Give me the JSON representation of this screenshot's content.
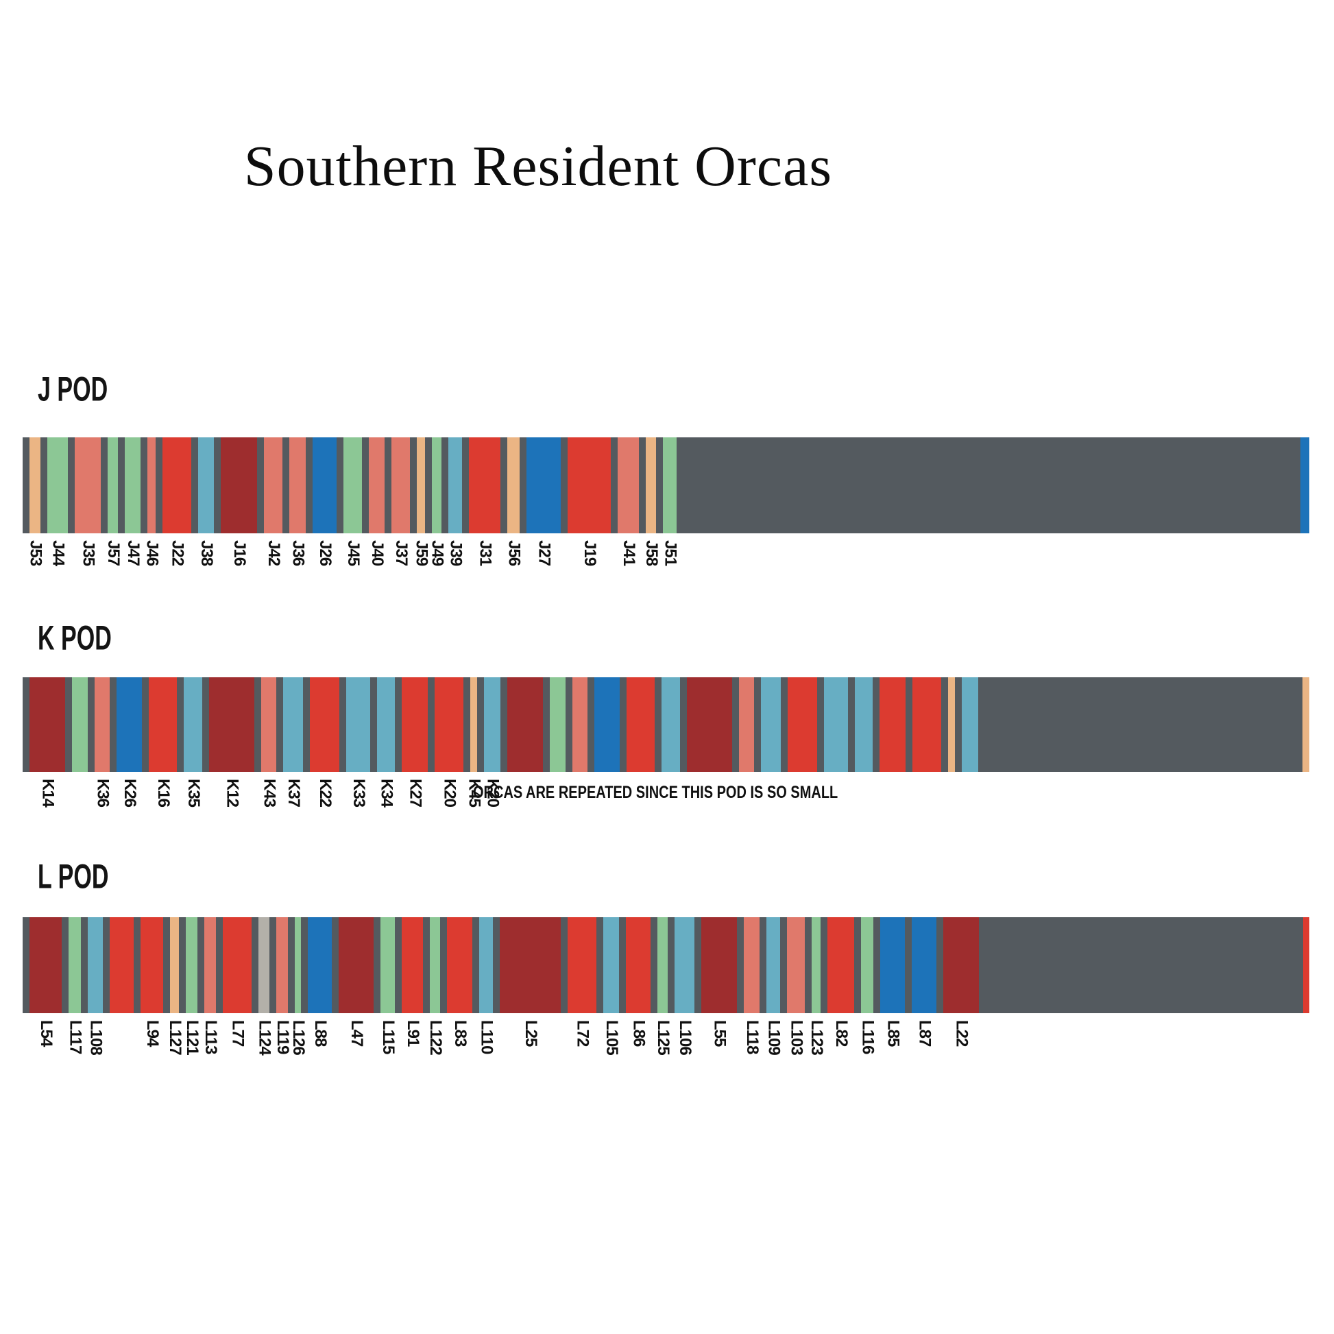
{
  "chart_data": {
    "type": "bar",
    "title": "Southern Resident Orcas",
    "subtitle": "",
    "legend": "none",
    "axes": "none",
    "colors": {
      "slate": "#545A5F",
      "tan": "#EBB584",
      "green": "#8CC795",
      "salmon": "#E0796B",
      "red": "#DC3B30",
      "lightblue": "#67AEC3",
      "darkred": "#9E2D2E",
      "blue": "#1D73B9",
      "silver": "#B3B0A9",
      "background": "#FFFFFF",
      "text": "#111111"
    },
    "pods": [
      {
        "name": "J POD",
        "caption": "",
        "repeat": false,
        "edge_color": "blue",
        "edge_w": 13,
        "members": [
          {
            "id": "J53",
            "color": "tan",
            "w": 16
          },
          {
            "id": "J44",
            "color": "green",
            "w": 30
          },
          {
            "id": "J35",
            "color": "salmon",
            "w": 38
          },
          {
            "id": "J57",
            "color": "green",
            "w": 15
          },
          {
            "id": "J47",
            "color": "green",
            "w": 23
          },
          {
            "id": "J46",
            "color": "salmon",
            "w": 12
          },
          {
            "id": "J22",
            "color": "red",
            "w": 42
          },
          {
            "id": "J38",
            "color": "lightblue",
            "w": 23
          },
          {
            "id": "J16",
            "color": "darkred",
            "w": 53
          },
          {
            "id": "J42",
            "color": "salmon",
            "w": 27
          },
          {
            "id": "J36",
            "color": "salmon",
            "w": 24
          },
          {
            "id": "J26",
            "color": "blue",
            "w": 35
          },
          {
            "id": "J45",
            "color": "green",
            "w": 27
          },
          {
            "id": "J40",
            "color": "salmon",
            "w": 23
          },
          {
            "id": "J37",
            "color": "salmon",
            "w": 27
          },
          {
            "id": "J59",
            "color": "tan",
            "w": 12
          },
          {
            "id": "J49",
            "color": "green",
            "w": 14
          },
          {
            "id": "J39",
            "color": "lightblue",
            "w": 20
          },
          {
            "id": "J31",
            "color": "red",
            "w": 46
          },
          {
            "id": "J56",
            "color": "tan",
            "w": 18
          },
          {
            "id": "J27",
            "color": "blue",
            "w": 50
          },
          {
            "id": "J19",
            "color": "red",
            "w": 63
          },
          {
            "id": "J41",
            "color": "salmon",
            "w": 31
          },
          {
            "id": "J58",
            "color": "tan",
            "w": 15
          },
          {
            "id": "J51",
            "color": "green",
            "w": 20
          }
        ]
      },
      {
        "name": "K POD",
        "caption": "ORCAS ARE REPEATED SINCE THIS POD IS SO SMALL",
        "repeat": true,
        "edge_color": "tan",
        "edge_w": 10,
        "members": [
          {
            "id": "K14",
            "color": "darkred",
            "w": 52
          },
          {
            "id": "",
            "color": "green",
            "w": 23
          },
          {
            "id": "K36",
            "color": "salmon",
            "w": 22
          },
          {
            "id": "K26",
            "color": "blue",
            "w": 37
          },
          {
            "id": "K16",
            "color": "red",
            "w": 41
          },
          {
            "id": "K35",
            "color": "lightblue",
            "w": 27
          },
          {
            "id": "K12",
            "color": "darkred",
            "w": 66
          },
          {
            "id": "K43",
            "color": "salmon",
            "w": 22
          },
          {
            "id": "K37",
            "color": "lightblue",
            "w": 29
          },
          {
            "id": "K22",
            "color": "red",
            "w": 43
          },
          {
            "id": "K33",
            "color": "lightblue",
            "w": 35
          },
          {
            "id": "K34",
            "color": "lightblue",
            "w": 26
          },
          {
            "id": "K27",
            "color": "red",
            "w": 38
          },
          {
            "id": "K20",
            "color": "red",
            "w": 42
          },
          {
            "id": "K45",
            "color": "tan",
            "w": 10
          },
          {
            "id": "K20",
            "color": "lightblue",
            "w": 24
          }
        ]
      },
      {
        "name": "L POD",
        "caption": "",
        "repeat": false,
        "edge_color": "red",
        "edge_w": 9,
        "members": [
          {
            "id": "L54",
            "color": "darkred",
            "w": 47
          },
          {
            "id": "L117",
            "color": "green",
            "w": 18
          },
          {
            "id": "L108",
            "color": "lightblue",
            "w": 22
          },
          {
            "id": "",
            "color": "red",
            "w": 35
          },
          {
            "id": "L94",
            "color": "red",
            "w": 33
          },
          {
            "id": "L127",
            "color": "tan",
            "w": 13
          },
          {
            "id": "L121",
            "color": "green",
            "w": 17
          },
          {
            "id": "L113",
            "color": "salmon",
            "w": 17
          },
          {
            "id": "L77",
            "color": "red",
            "w": 42
          },
          {
            "id": "L124",
            "color": "silver",
            "w": 16
          },
          {
            "id": "L119",
            "color": "salmon",
            "w": 17
          },
          {
            "id": "L126",
            "color": "green",
            "w": 9
          },
          {
            "id": "L88",
            "color": "blue",
            "w": 35
          },
          {
            "id": "L47",
            "color": "darkred",
            "w": 51
          },
          {
            "id": "L115",
            "color": "green",
            "w": 21
          },
          {
            "id": "L91",
            "color": "red",
            "w": 31
          },
          {
            "id": "L122",
            "color": "green",
            "w": 15
          },
          {
            "id": "L83",
            "color": "red",
            "w": 37
          },
          {
            "id": "L110",
            "color": "lightblue",
            "w": 20
          },
          {
            "id": "L25",
            "color": "darkred",
            "w": 89
          },
          {
            "id": "L72",
            "color": "red",
            "w": 42
          },
          {
            "id": "L105",
            "color": "lightblue",
            "w": 23
          },
          {
            "id": "L86",
            "color": "red",
            "w": 36
          },
          {
            "id": "L125",
            "color": "green",
            "w": 15
          },
          {
            "id": "L106",
            "color": "lightblue",
            "w": 29
          },
          {
            "id": "L55",
            "color": "darkred",
            "w": 52
          },
          {
            "id": "L118",
            "color": "salmon",
            "w": 23
          },
          {
            "id": "L109",
            "color": "lightblue",
            "w": 20
          },
          {
            "id": "L103",
            "color": "salmon",
            "w": 26
          },
          {
            "id": "L123",
            "color": "green",
            "w": 13
          },
          {
            "id": "L82",
            "color": "red",
            "w": 39
          },
          {
            "id": "L116",
            "color": "green",
            "w": 18
          },
          {
            "id": "L85",
            "color": "blue",
            "w": 36
          },
          {
            "id": "L87",
            "color": "blue",
            "w": 36
          },
          {
            "id": "L22",
            "color": "darkred",
            "w": 52
          }
        ]
      }
    ]
  }
}
